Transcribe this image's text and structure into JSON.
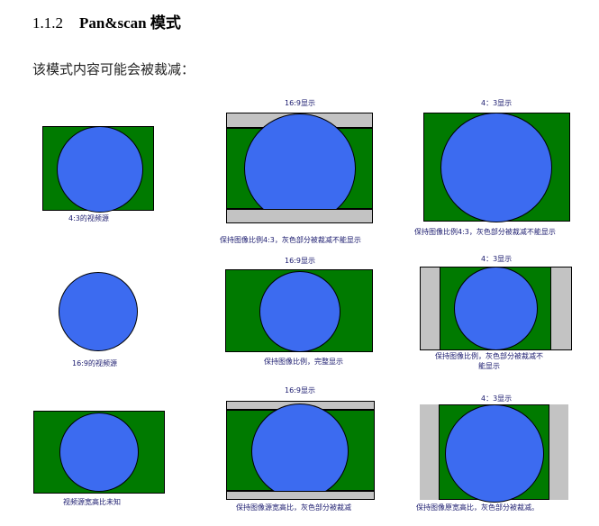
{
  "heading": {
    "number": "1.1.2",
    "title": "Pan&scan 模式"
  },
  "intro": "该模式内容可能会被裁减：",
  "diagrams": {
    "row1": {
      "source_caption": "4:3的视频源",
      "mid_title": "16:9显示",
      "mid_caption": "保持图像比例4:3，灰色部分被裁减不能显示",
      "right_title": "4：3显示",
      "right_caption": "保持图像比例4:3，灰色部分被裁减不能显示"
    },
    "row2": {
      "source_caption": "16:9的视频源",
      "mid_title": "16:9显示",
      "mid_caption": "保持图像比例，完整显示",
      "right_title": "4：3显示",
      "right_caption": "保持图像比例，灰色部分被裁减不能显示"
    },
    "row3": {
      "source_caption": "视频源宽高比未知",
      "mid_title": "16:9显示",
      "mid_caption": "保持图像源宽高比，灰色部分被裁减",
      "right_title": "4：3显示",
      "right_caption": "保持图像原宽高比，灰色部分被裁减。"
    }
  },
  "colors": {
    "screen": "#007a00",
    "picture": "#3c6bf0",
    "cropped": "#c3c3c3",
    "caption": "#1a1a6e"
  }
}
